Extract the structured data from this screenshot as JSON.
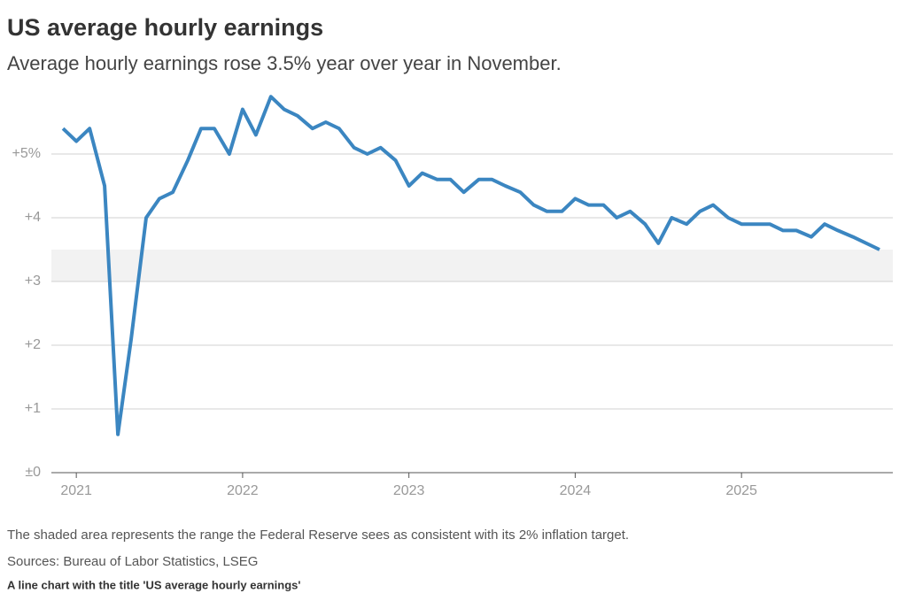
{
  "chart_data": {
    "type": "line",
    "title": "US average hourly earnings",
    "subtitle": "Average hourly earnings rose 3.5% year over year in November.",
    "note": "The shaded area represents the range the Federal Reserve sees as consistent with its 2% inflation target.",
    "source": "Sources: Bureau of Labor Statistics, LSEG",
    "caption": "A line chart with the title 'US average hourly earnings'",
    "x": [
      2020.92,
      2021.0,
      2021.08,
      2021.17,
      2021.25,
      2021.33,
      2021.42,
      2021.5,
      2021.58,
      2021.67,
      2021.75,
      2021.83,
      2021.92,
      2022.0,
      2022.08,
      2022.17,
      2022.25,
      2022.33,
      2022.42,
      2022.5,
      2022.58,
      2022.67,
      2022.75,
      2022.83,
      2022.92,
      2023.0,
      2023.08,
      2023.17,
      2023.25,
      2023.33,
      2023.42,
      2023.5,
      2023.58,
      2023.67,
      2023.75,
      2023.83,
      2023.92,
      2024.0,
      2024.08,
      2024.17,
      2024.25,
      2024.33,
      2024.42,
      2024.5,
      2024.58,
      2024.67,
      2024.75,
      2024.83,
      2024.92,
      2025.0,
      2025.08,
      2025.17,
      2025.25,
      2025.33,
      2025.42,
      2025.5,
      2025.58,
      2025.67,
      2025.83
    ],
    "series": [
      {
        "color": "#3b86c1",
        "values": [
          5.4,
          5.2,
          5.4,
          4.5,
          0.6,
          2.1,
          4.0,
          4.3,
          4.4,
          4.9,
          5.4,
          5.4,
          5.0,
          5.7,
          5.3,
          5.9,
          5.7,
          5.6,
          5.4,
          5.5,
          5.4,
          5.1,
          5.0,
          5.1,
          4.9,
          4.5,
          4.7,
          4.6,
          4.6,
          4.4,
          4.6,
          4.6,
          4.5,
          4.4,
          4.2,
          4.1,
          4.1,
          4.3,
          4.2,
          4.2,
          4.0,
          4.1,
          3.9,
          3.6,
          4.0,
          3.9,
          4.1,
          4.2,
          4.0,
          3.9,
          3.9,
          3.9,
          3.8,
          3.8,
          3.7,
          3.9,
          3.8,
          3.7,
          3.5
        ]
      }
    ],
    "shaded_range": [
      3,
      3.5
    ],
    "xlim": [
      2020.85,
      2025.91
    ],
    "xticks": [
      2021,
      2022,
      2023,
      2024,
      2025
    ],
    "ylim": [
      0,
      6
    ],
    "yticks": [
      {
        "value": 0,
        "label": "±0"
      },
      {
        "value": 1,
        "label": "+1"
      },
      {
        "value": 2,
        "label": "+2"
      },
      {
        "value": 3,
        "label": "+3"
      },
      {
        "value": 4,
        "label": "+4"
      },
      {
        "value": 5,
        "label": "+5%"
      }
    ],
    "grid": true
  }
}
